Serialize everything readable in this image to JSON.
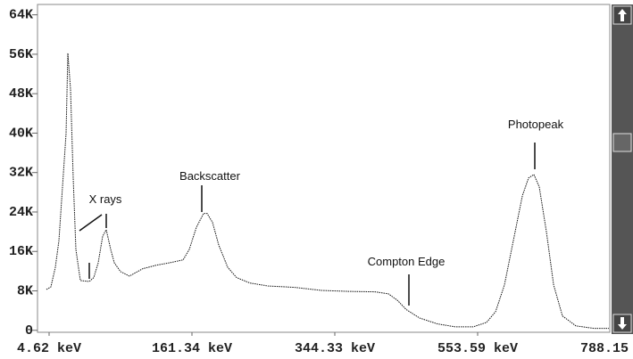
{
  "chart_data": {
    "type": "line",
    "x": [
      1.7,
      6.6,
      11.5,
      15.4,
      19.3,
      23.2,
      25.2,
      28.1,
      31.1,
      34.0,
      38.9,
      48.7,
      53.6,
      58.5,
      63.4,
      67.3,
      72.2,
      76.1,
      83.0,
      92.8,
      107.5,
      122.2,
      136.9,
      151.6,
      158.4,
      167.1,
      176.2,
      180.8,
      187.6,
      195.6,
      207.1,
      218.5,
      235.7,
      258.6,
      292.9,
      327.2,
      363.9,
      403.2,
      422.8,
      435.9,
      449.0,
      468.6,
      494.8,
      520.9,
      547.1,
      568.3,
      583.0,
      597.6,
      612.3,
      627.0,
      637.2,
      646.0,
      654.8,
      666.5,
      678.3,
      692.9,
      714.9,
      744.2,
      769.1
    ],
    "series": [
      {
        "color": "#111111",
        "values": [
          8300,
          8800,
          12800,
          18200,
          29100,
          39900,
          56200,
          48900,
          30900,
          16400,
          10100,
          9900,
          10700,
          13700,
          19100,
          20400,
          16400,
          13700,
          11900,
          11000,
          12500,
          13200,
          13700,
          14300,
          16400,
          20900,
          23700,
          23700,
          21900,
          17300,
          12800,
          10700,
          9600,
          9000,
          8700,
          8100,
          7900,
          7800,
          7400,
          6100,
          4200,
          2500,
          1300,
          700,
          700,
          1600,
          3800,
          9200,
          18200,
          27300,
          30900,
          31600,
          29100,
          20000,
          9200,
          2900,
          900,
          400,
          400
        ]
      }
    ],
    "xlim": [
      -8,
      771
    ],
    "xticks": [
      {
        "value": 4.62,
        "label": "4.62 keV"
      },
      {
        "value": 161.34,
        "label": "161.34 keV"
      },
      {
        "value": 344.33,
        "label": "344.33 keV"
      },
      {
        "value": 553.59,
        "label": "553.59 keV"
      },
      {
        "value": 788.15,
        "label": "788.15 keV"
      }
    ],
    "ylim": [
      -400,
      66100
    ],
    "yticks": [
      0,
      {
        "value": 8000,
        "label": "8K"
      },
      {
        "value": 16000,
        "label": "16K"
      },
      {
        "value": 24000,
        "label": "24K"
      },
      {
        "value": 32000,
        "label": "32K"
      },
      {
        "value": 40000,
        "label": "40K"
      },
      {
        "value": 48000,
        "label": "48K"
      },
      {
        "value": 56000,
        "label": "56K"
      },
      {
        "value": 64000,
        "label": "64K"
      }
    ],
    "annotations": [
      "X rays",
      "Backscatter",
      "Compton Edge",
      "Photopeak"
    ]
  }
}
